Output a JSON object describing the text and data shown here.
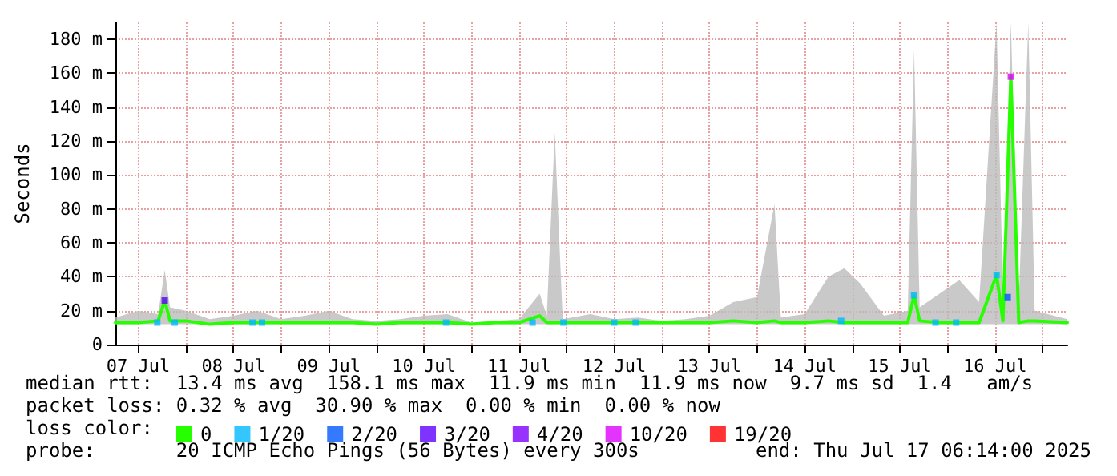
{
  "chart_data": {
    "type": "line",
    "ylabel": "Seconds",
    "legend_title": "loss color:",
    "legend": "bottom",
    "grid": true,
    "xlim": [
      "2025-07-07T06:14",
      "2025-07-17T06:14"
    ],
    "xticks": [
      {
        "value": "2025-07-07T12:00",
        "label": "07 Jul"
      },
      {
        "value": "2025-07-08T00:00",
        "label": null
      },
      {
        "value": "2025-07-08T12:00",
        "label": "08 Jul"
      },
      {
        "value": "2025-07-09T00:00",
        "label": null
      },
      {
        "value": "2025-07-09T12:00",
        "label": "09 Jul"
      },
      {
        "value": "2025-07-10T00:00",
        "label": null
      },
      {
        "value": "2025-07-10T12:00",
        "label": "10 Jul"
      },
      {
        "value": "2025-07-11T00:00",
        "label": null
      },
      {
        "value": "2025-07-11T12:00",
        "label": "11 Jul"
      },
      {
        "value": "2025-07-12T00:00",
        "label": null
      },
      {
        "value": "2025-07-12T12:00",
        "label": "12 Jul"
      },
      {
        "value": "2025-07-13T00:00",
        "label": null
      },
      {
        "value": "2025-07-13T12:00",
        "label": "13 Jul"
      },
      {
        "value": "2025-07-14T00:00",
        "label": null
      },
      {
        "value": "2025-07-14T12:00",
        "label": "14 Jul"
      },
      {
        "value": "2025-07-15T00:00",
        "label": null
      },
      {
        "value": "2025-07-15T12:00",
        "label": "15 Jul"
      },
      {
        "value": "2025-07-16T00:00",
        "label": null
      },
      {
        "value": "2025-07-16T12:00",
        "label": "16 Jul"
      },
      {
        "value": "2025-07-17T00:00",
        "label": null
      }
    ],
    "ylim": [
      0,
      190
    ],
    "yticks": [
      0,
      {
        "value": 20,
        "label": "20 m"
      },
      {
        "value": 40,
        "label": "40 m"
      },
      {
        "value": 60,
        "label": "60 m"
      },
      {
        "value": 80,
        "label": "80 m"
      },
      {
        "value": 100,
        "label": "100 m"
      },
      {
        "value": 120,
        "label": "120 m"
      },
      {
        "value": 140,
        "label": "140 m"
      },
      {
        "value": 160,
        "label": "160 m"
      },
      {
        "value": 180,
        "label": "180 m"
      }
    ],
    "series": [
      {
        "name": "0",
        "marker": "none",
        "color": "#26ff00",
        "x": [
          "2025-07-07T06:14",
          "2025-07-07T12:00",
          "2025-07-07T17:00",
          "2025-07-07T18:40",
          "2025-07-07T20:00",
          "2025-07-08T00:00",
          "2025-07-08T06:00",
          "2025-07-08T12:00",
          "2025-07-08T18:00",
          "2025-07-09T00:00",
          "2025-07-09T06:00",
          "2025-07-09T12:00",
          "2025-07-09T18:00",
          "2025-07-10T00:00",
          "2025-07-10T06:00",
          "2025-07-10T12:00",
          "2025-07-10T18:00",
          "2025-07-11T00:00",
          "2025-07-11T06:00",
          "2025-07-11T12:00",
          "2025-07-11T17:12",
          "2025-07-11T19:00",
          "2025-07-11T21:00",
          "2025-07-11T23:00",
          "2025-07-12T06:00",
          "2025-07-12T12:00",
          "2025-07-12T18:00",
          "2025-07-13T00:00",
          "2025-07-13T06:00",
          "2025-07-13T12:00",
          "2025-07-13T18:00",
          "2025-07-14T00:00",
          "2025-07-14T04:24",
          "2025-07-14T06:00",
          "2025-07-14T12:00",
          "2025-07-14T18:00",
          "2025-07-14T22:00",
          "2025-07-15T02:00",
          "2025-07-15T08:00",
          "2025-07-15T14:00",
          "2025-07-15T15:36",
          "2025-07-15T17:00",
          "2025-07-15T22:00",
          "2025-07-16T03:00",
          "2025-07-16T08:00",
          "2025-07-16T12:24",
          "2025-07-16T14:00",
          "2025-07-16T16:00",
          "2025-07-16T18:00",
          "2025-07-16T20:24",
          "2025-07-16T22:00",
          "2025-07-17T06:14"
        ],
        "values": [
          13,
          13,
          14,
          26,
          14,
          14,
          12,
          13,
          13,
          13,
          13,
          13,
          13,
          12,
          13,
          13,
          13,
          12,
          13,
          13,
          17,
          13,
          13,
          13,
          13,
          13,
          13,
          13,
          13,
          13,
          14,
          13,
          14,
          13,
          13,
          14,
          13,
          13,
          13,
          13,
          29,
          14,
          13,
          13,
          13,
          41,
          14,
          158,
          13,
          14,
          14,
          13
        ],
        "lower": [
          12,
          12,
          12,
          12,
          12,
          12,
          12,
          12,
          12,
          12,
          12,
          12,
          12,
          12,
          12,
          12,
          12,
          12,
          12,
          12,
          12,
          12,
          12,
          12,
          12,
          12,
          12,
          12,
          12,
          12,
          12,
          12,
          12,
          12,
          12,
          12,
          12,
          12,
          12,
          12,
          12,
          12,
          12,
          12,
          12,
          12,
          12,
          12,
          12,
          12,
          12,
          12
        ],
        "upper": [
          16,
          20,
          18,
          44,
          22,
          20,
          15,
          17,
          20,
          15,
          17,
          20,
          15,
          14,
          15,
          17,
          18,
          13,
          14,
          15,
          30,
          17,
          125,
          15,
          18,
          15,
          16,
          14,
          15,
          17,
          25,
          28,
          83,
          16,
          18,
          40,
          45,
          36,
          17,
          20,
          174,
          22,
          30,
          38,
          25,
          190,
          30,
          190,
          25,
          190,
          20,
          15
        ]
      },
      {
        "name": "1/20",
        "type": "scatter",
        "marker": "square",
        "color": "#00b8ff",
        "x": [
          "2025-07-07T16:48",
          "2025-07-07T21:12",
          "2025-07-08T16:48",
          "2025-07-08T19:12",
          "2025-07-10T17:36",
          "2025-07-11T15:24",
          "2025-07-11T23:12",
          "2025-07-12T12:00",
          "2025-07-12T17:24",
          "2025-07-14T21:12",
          "2025-07-15T15:36",
          "2025-07-15T21:00",
          "2025-07-16T02:12",
          "2025-07-16T12:24"
        ],
        "values": [
          13,
          13,
          13,
          13,
          13,
          13,
          13,
          13,
          13,
          14,
          29,
          13,
          13,
          41
        ]
      },
      {
        "name": "2/20",
        "type": "scatter",
        "marker": "square",
        "color": "#0059ff",
        "x": [
          "2025-07-16T15:12"
        ],
        "values": [
          28
        ]
      },
      {
        "name": "3/20",
        "type": "scatter",
        "marker": "square",
        "color": "#5e00ff",
        "x": [
          "2025-07-07T18:40"
        ],
        "values": [
          26
        ]
      },
      {
        "name": "4/20",
        "type": "scatter",
        "marker": "square",
        "color": "#7e00ff"
      },
      {
        "name": "10/20",
        "type": "scatter",
        "marker": "square",
        "color": "#dd00ff",
        "x": [
          "2025-07-16T16:00"
        ],
        "values": [
          158
        ]
      },
      {
        "name": "19/20",
        "type": "scatter",
        "marker": "square",
        "color": "#ff0000"
      }
    ],
    "annotations": [
      "median rtt:  13.4 ms avg  158.1 ms max  11.9 ms min  11.9 ms now  9.7 ms sd  1.4   am/s",
      "packet loss: 0.32 % avg  30.90 % max  0.00 % min  0.00 % now",
      "probe:       20 ICMP Echo Pings (56 Bytes) every 300s",
      "end: Thu Jul 17 06:14:00 2025"
    ]
  }
}
